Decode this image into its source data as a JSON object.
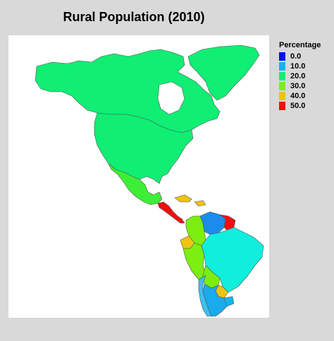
{
  "title": "Rural Population (2010)",
  "legend": {
    "title": "Percentage",
    "items": [
      {
        "label": "0.0",
        "color": "#0010ee"
      },
      {
        "label": "10.0",
        "color": "#10b6ee"
      },
      {
        "label": "20.0",
        "color": "#10ee74"
      },
      {
        "label": "30.0",
        "color": "#7cee10"
      },
      {
        "label": "40.0",
        "color": "#eec410"
      },
      {
        "label": "50.0",
        "color": "#ee1010"
      }
    ]
  },
  "colors": {
    "greenland": "#10ee74",
    "canada": "#10ee74",
    "usa": "#10ee74",
    "mexico": "#3dee36",
    "central_america": "#ee1010",
    "caribbean": "#eec410",
    "colombia": "#7cee10",
    "venezuela": "#1a8cee",
    "guyanas": "#ee1010",
    "ecuador": "#eec410",
    "peru": "#7cee10",
    "brazil": "#10eede",
    "bolivia": "#7cee10",
    "paraguay": "#eec410",
    "argentina": "#1aaaee",
    "chile": "#3dc0ee",
    "uruguay": "#10b6ee"
  }
}
